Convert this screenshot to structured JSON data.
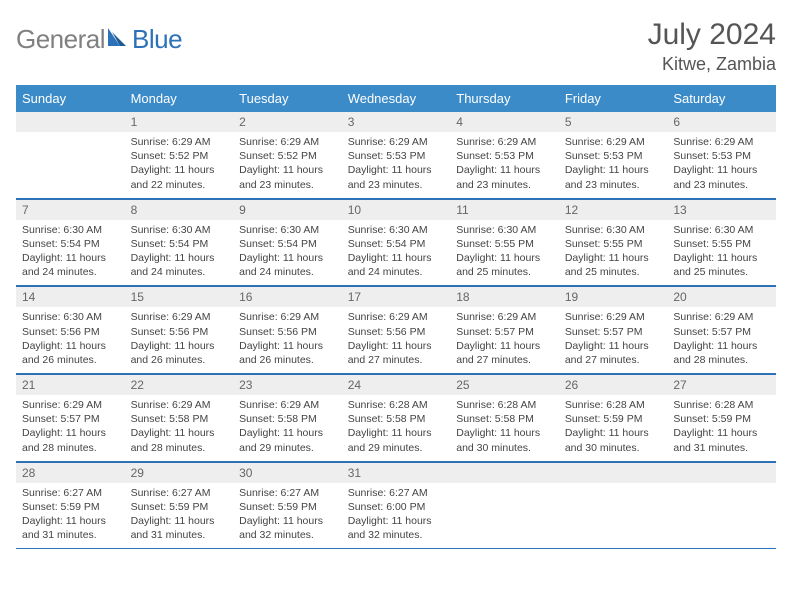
{
  "brand": {
    "gray": "General",
    "blue": "Blue"
  },
  "title": "July 2024",
  "location": "Kitwe, Zambia",
  "colors": {
    "header_bg": "#3b8bc9",
    "header_text": "#ffffff",
    "rule": "#2d72b8",
    "daynum_bg": "#eeeeee",
    "body_text": "#444444",
    "title_text": "#555555",
    "logo_gray": "#808080",
    "logo_blue": "#2d72b8"
  },
  "fonts": {
    "title_size_pt": 22,
    "location_size_pt": 13,
    "dow_size_pt": 10,
    "body_size_pt": 8
  },
  "dow": [
    "Sunday",
    "Monday",
    "Tuesday",
    "Wednesday",
    "Thursday",
    "Friday",
    "Saturday"
  ],
  "weeks": [
    [
      null,
      {
        "n": "1",
        "sr": "Sunrise: 6:29 AM",
        "ss": "Sunset: 5:52 PM",
        "dl": "Daylight: 11 hours and 22 minutes."
      },
      {
        "n": "2",
        "sr": "Sunrise: 6:29 AM",
        "ss": "Sunset: 5:52 PM",
        "dl": "Daylight: 11 hours and 23 minutes."
      },
      {
        "n": "3",
        "sr": "Sunrise: 6:29 AM",
        "ss": "Sunset: 5:53 PM",
        "dl": "Daylight: 11 hours and 23 minutes."
      },
      {
        "n": "4",
        "sr": "Sunrise: 6:29 AM",
        "ss": "Sunset: 5:53 PM",
        "dl": "Daylight: 11 hours and 23 minutes."
      },
      {
        "n": "5",
        "sr": "Sunrise: 6:29 AM",
        "ss": "Sunset: 5:53 PM",
        "dl": "Daylight: 11 hours and 23 minutes."
      },
      {
        "n": "6",
        "sr": "Sunrise: 6:29 AM",
        "ss": "Sunset: 5:53 PM",
        "dl": "Daylight: 11 hours and 23 minutes."
      }
    ],
    [
      {
        "n": "7",
        "sr": "Sunrise: 6:30 AM",
        "ss": "Sunset: 5:54 PM",
        "dl": "Daylight: 11 hours and 24 minutes."
      },
      {
        "n": "8",
        "sr": "Sunrise: 6:30 AM",
        "ss": "Sunset: 5:54 PM",
        "dl": "Daylight: 11 hours and 24 minutes."
      },
      {
        "n": "9",
        "sr": "Sunrise: 6:30 AM",
        "ss": "Sunset: 5:54 PM",
        "dl": "Daylight: 11 hours and 24 minutes."
      },
      {
        "n": "10",
        "sr": "Sunrise: 6:30 AM",
        "ss": "Sunset: 5:54 PM",
        "dl": "Daylight: 11 hours and 24 minutes."
      },
      {
        "n": "11",
        "sr": "Sunrise: 6:30 AM",
        "ss": "Sunset: 5:55 PM",
        "dl": "Daylight: 11 hours and 25 minutes."
      },
      {
        "n": "12",
        "sr": "Sunrise: 6:30 AM",
        "ss": "Sunset: 5:55 PM",
        "dl": "Daylight: 11 hours and 25 minutes."
      },
      {
        "n": "13",
        "sr": "Sunrise: 6:30 AM",
        "ss": "Sunset: 5:55 PM",
        "dl": "Daylight: 11 hours and 25 minutes."
      }
    ],
    [
      {
        "n": "14",
        "sr": "Sunrise: 6:30 AM",
        "ss": "Sunset: 5:56 PM",
        "dl": "Daylight: 11 hours and 26 minutes."
      },
      {
        "n": "15",
        "sr": "Sunrise: 6:29 AM",
        "ss": "Sunset: 5:56 PM",
        "dl": "Daylight: 11 hours and 26 minutes."
      },
      {
        "n": "16",
        "sr": "Sunrise: 6:29 AM",
        "ss": "Sunset: 5:56 PM",
        "dl": "Daylight: 11 hours and 26 minutes."
      },
      {
        "n": "17",
        "sr": "Sunrise: 6:29 AM",
        "ss": "Sunset: 5:56 PM",
        "dl": "Daylight: 11 hours and 27 minutes."
      },
      {
        "n": "18",
        "sr": "Sunrise: 6:29 AM",
        "ss": "Sunset: 5:57 PM",
        "dl": "Daylight: 11 hours and 27 minutes."
      },
      {
        "n": "19",
        "sr": "Sunrise: 6:29 AM",
        "ss": "Sunset: 5:57 PM",
        "dl": "Daylight: 11 hours and 27 minutes."
      },
      {
        "n": "20",
        "sr": "Sunrise: 6:29 AM",
        "ss": "Sunset: 5:57 PM",
        "dl": "Daylight: 11 hours and 28 minutes."
      }
    ],
    [
      {
        "n": "21",
        "sr": "Sunrise: 6:29 AM",
        "ss": "Sunset: 5:57 PM",
        "dl": "Daylight: 11 hours and 28 minutes."
      },
      {
        "n": "22",
        "sr": "Sunrise: 6:29 AM",
        "ss": "Sunset: 5:58 PM",
        "dl": "Daylight: 11 hours and 28 minutes."
      },
      {
        "n": "23",
        "sr": "Sunrise: 6:29 AM",
        "ss": "Sunset: 5:58 PM",
        "dl": "Daylight: 11 hours and 29 minutes."
      },
      {
        "n": "24",
        "sr": "Sunrise: 6:28 AM",
        "ss": "Sunset: 5:58 PM",
        "dl": "Daylight: 11 hours and 29 minutes."
      },
      {
        "n": "25",
        "sr": "Sunrise: 6:28 AM",
        "ss": "Sunset: 5:58 PM",
        "dl": "Daylight: 11 hours and 30 minutes."
      },
      {
        "n": "26",
        "sr": "Sunrise: 6:28 AM",
        "ss": "Sunset: 5:59 PM",
        "dl": "Daylight: 11 hours and 30 minutes."
      },
      {
        "n": "27",
        "sr": "Sunrise: 6:28 AM",
        "ss": "Sunset: 5:59 PM",
        "dl": "Daylight: 11 hours and 31 minutes."
      }
    ],
    [
      {
        "n": "28",
        "sr": "Sunrise: 6:27 AM",
        "ss": "Sunset: 5:59 PM",
        "dl": "Daylight: 11 hours and 31 minutes."
      },
      {
        "n": "29",
        "sr": "Sunrise: 6:27 AM",
        "ss": "Sunset: 5:59 PM",
        "dl": "Daylight: 11 hours and 31 minutes."
      },
      {
        "n": "30",
        "sr": "Sunrise: 6:27 AM",
        "ss": "Sunset: 5:59 PM",
        "dl": "Daylight: 11 hours and 32 minutes."
      },
      {
        "n": "31",
        "sr": "Sunrise: 6:27 AM",
        "ss": "Sunset: 6:00 PM",
        "dl": "Daylight: 11 hours and 32 minutes."
      },
      null,
      null,
      null
    ]
  ]
}
